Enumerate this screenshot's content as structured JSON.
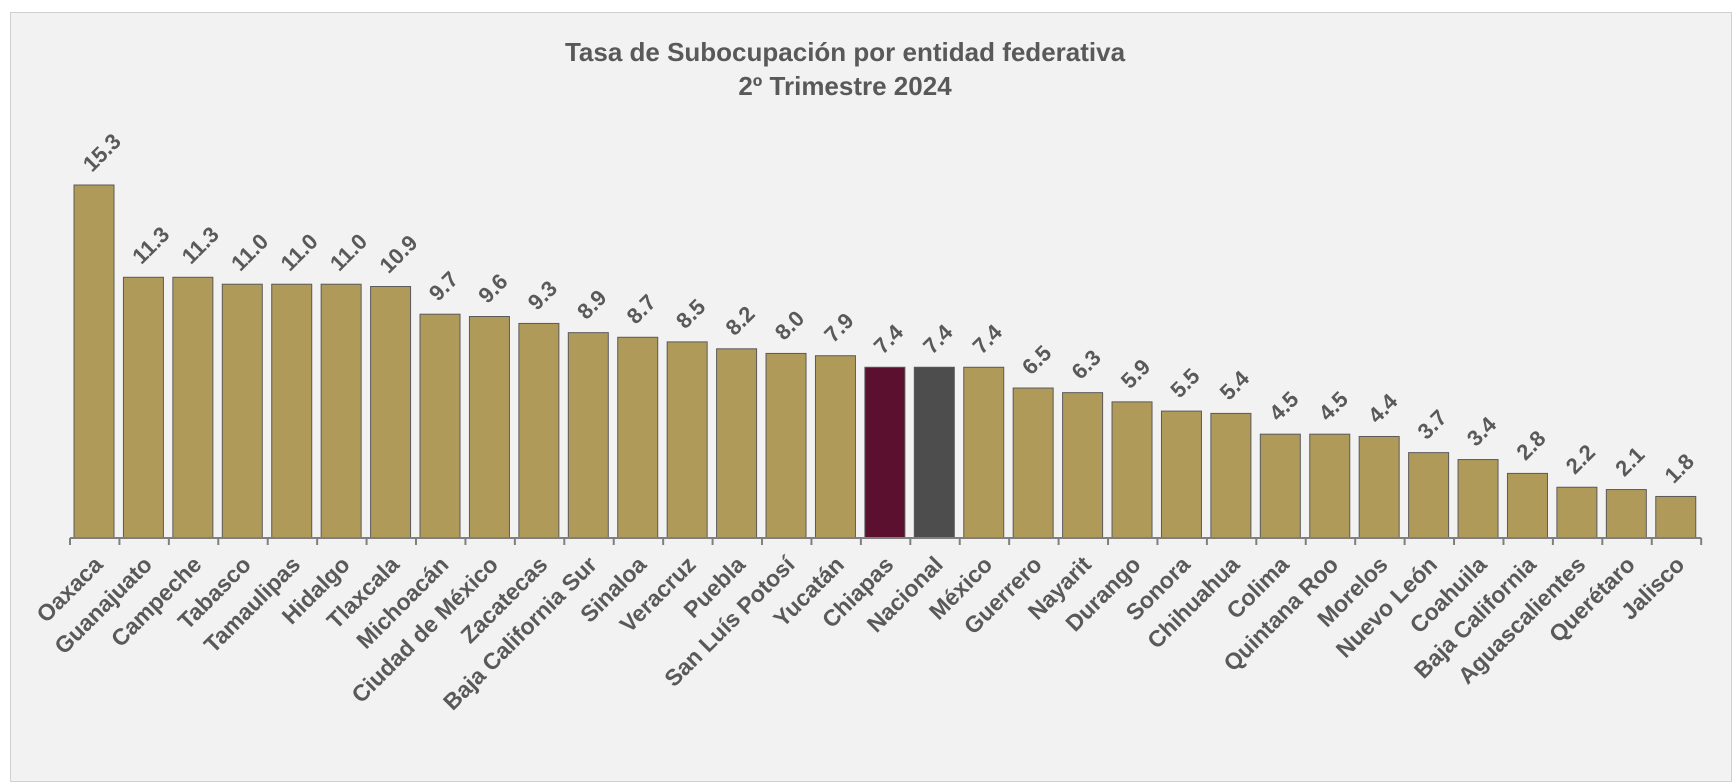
{
  "chart_data": {
    "type": "bar",
    "title": [
      "Tasa de Subocupación por entidad federativa",
      "2º Trimestre 2024"
    ],
    "xlabel": "",
    "ylabel": "",
    "ylim": [
      0,
      15.3
    ],
    "grid": false,
    "legend": "none",
    "categories": [
      "Oaxaca",
      "Guanajuato",
      "Campeche",
      "Tabasco",
      "Tamaulipas",
      "Hidalgo",
      "Tlaxcala",
      "Michoacán",
      "Ciudad de México",
      "Zacatecas",
      "Baja California Sur",
      "Sinaloa",
      "Veracruz",
      "Puebla",
      "San Luís Potosí",
      "Yucatán",
      "Chiapas",
      "Nacional",
      "México",
      "Guerrero",
      "Nayarit",
      "Durango",
      "Sonora",
      "Chihuahua",
      "Colima",
      "Quintana Roo",
      "Morelos",
      "Nuevo León",
      "Coahuila",
      "Baja California",
      "Aguascalientes",
      "Querétaro",
      "Jalisco"
    ],
    "values": [
      15.3,
      11.3,
      11.3,
      11.0,
      11.0,
      11.0,
      10.9,
      9.7,
      9.6,
      9.3,
      8.9,
      8.7,
      8.5,
      8.2,
      8.0,
      7.9,
      7.4,
      7.4,
      7.4,
      6.5,
      6.3,
      5.9,
      5.5,
      5.4,
      4.5,
      4.5,
      4.4,
      3.7,
      3.4,
      2.8,
      2.2,
      2.1,
      1.8
    ],
    "colors": {
      "default": "#b09a5a",
      "highlight": "#5c1030",
      "national": "#4d4d4d",
      "bar_border": "#5a5a5a",
      "axis": "#7f7f7f",
      "text": "#595959"
    },
    "highlight_categories": {
      "Chiapas": "highlight",
      "Nacional": "national"
    }
  }
}
